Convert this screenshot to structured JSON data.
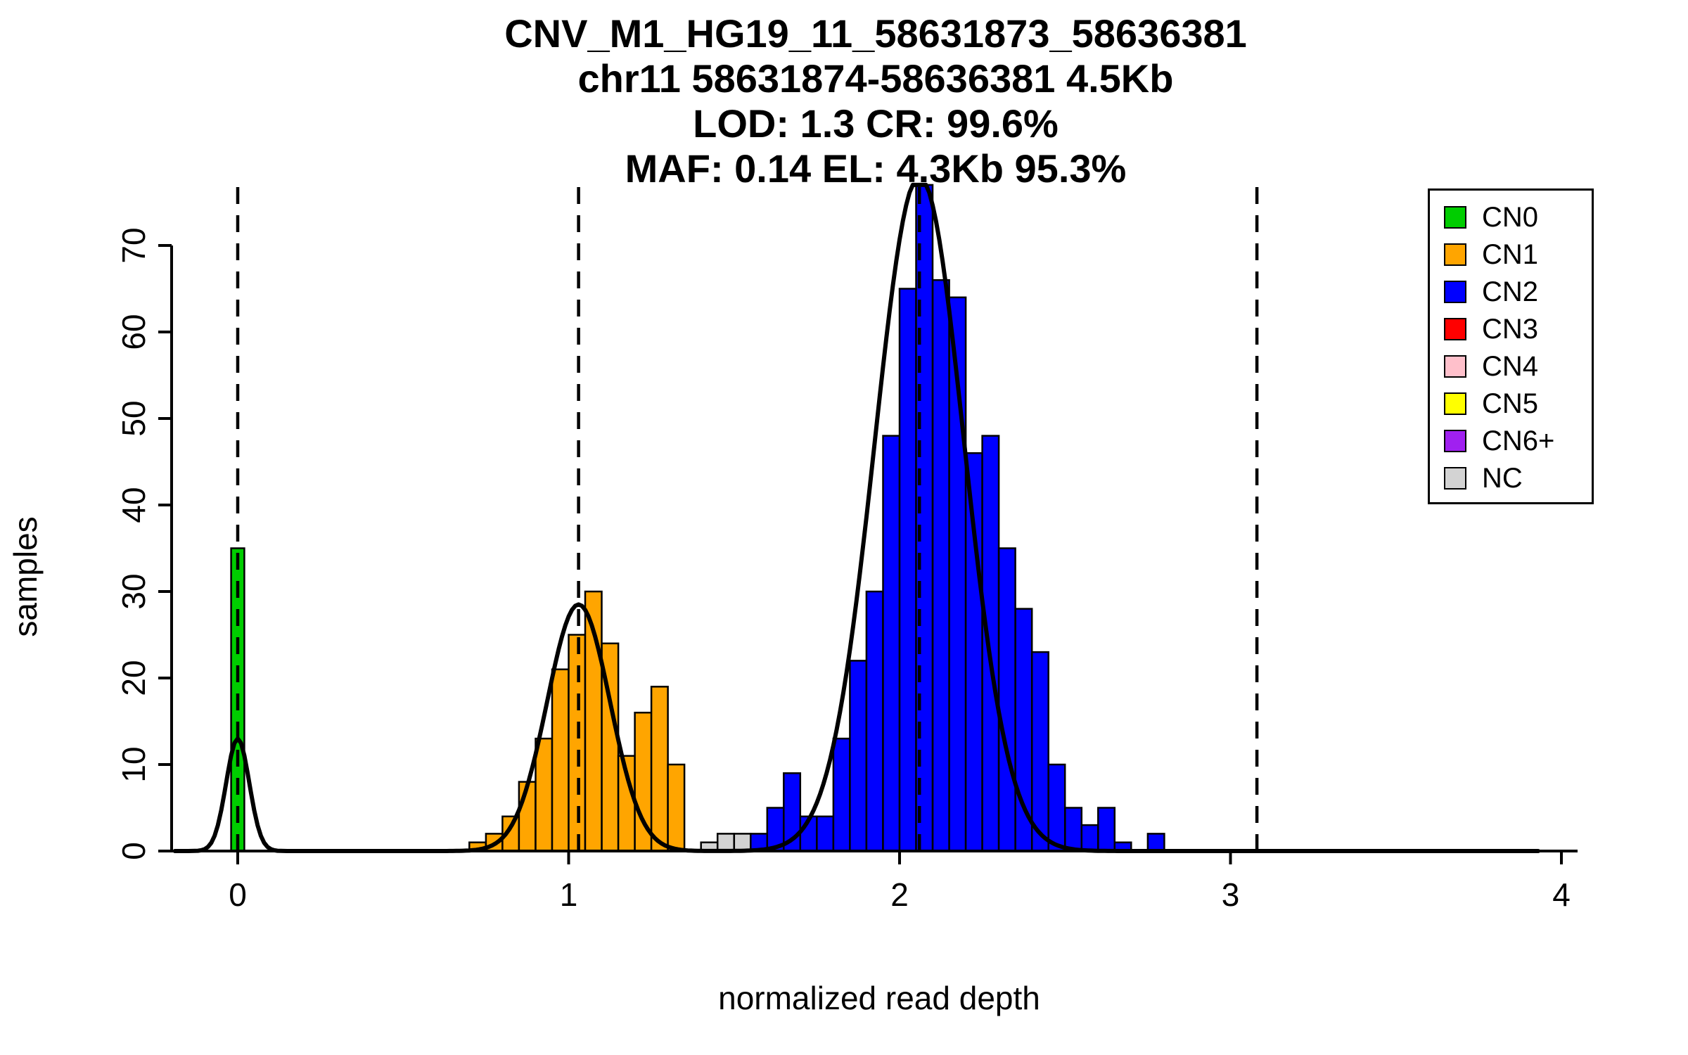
{
  "chart_data": {
    "type": "histogram",
    "title_lines": [
      "CNV_M1_HG19_11_58631873_58636381",
      "chr11 58631874-58636381 4.5Kb",
      "LOD: 1.3 CR: 99.6%",
      "MAF: 0.14 EL: 4.3Kb 95.3%"
    ],
    "xlabel": "normalized read depth",
    "ylabel": "samples",
    "xlim": [
      -0.2,
      4.05
    ],
    "ylim": [
      0,
      77
    ],
    "xticks": [
      0,
      1,
      2,
      3,
      4
    ],
    "yticks": [
      0,
      10,
      20,
      30,
      40,
      50,
      60,
      70
    ],
    "grid": false,
    "legend_position": "top-right",
    "bin_width": 0.05,
    "cluster_means": [
      0,
      1.03,
      2.06,
      3.08
    ],
    "gaussians": [
      {
        "mu": 0.0,
        "sigma": 0.035,
        "amp": 13
      },
      {
        "mu": 1.03,
        "sigma": 0.095,
        "amp": 28.5
      },
      {
        "mu": 2.06,
        "sigma": 0.135,
        "amp": 78
      }
    ],
    "colors": {
      "CN0": "#00CD00",
      "CN1": "#FFA500",
      "CN2": "#0000FF",
      "CN3": "#FF0000",
      "CN4": "#FFC0CB",
      "CN5": "#FFFF00",
      "CN6+": "#A020F0",
      "NC": "#D3D3D3"
    },
    "legend": [
      {
        "label": "CN0",
        "color": "#00CD00"
      },
      {
        "label": "CN1",
        "color": "#FFA500"
      },
      {
        "label": "CN2",
        "color": "#0000FF"
      },
      {
        "label": "CN3",
        "color": "#FF0000"
      },
      {
        "label": "CN4",
        "color": "#FFC0CB"
      },
      {
        "label": "CN5",
        "color": "#FFFF00"
      },
      {
        "label": "CN6+",
        "color": "#A020F0"
      },
      {
        "label": "NC",
        "color": "#D3D3D3"
      }
    ],
    "bars": [
      {
        "x": -0.02,
        "w": 0.04,
        "h": 35,
        "cn": "CN0"
      },
      {
        "x": 0.7,
        "h": 1,
        "cn": "CN1"
      },
      {
        "x": 0.75,
        "h": 2,
        "cn": "CN1"
      },
      {
        "x": 0.8,
        "h": 4,
        "cn": "CN1"
      },
      {
        "x": 0.85,
        "h": 8,
        "cn": "CN1"
      },
      {
        "x": 0.9,
        "h": 13,
        "cn": "CN1"
      },
      {
        "x": 0.95,
        "h": 21,
        "cn": "CN1"
      },
      {
        "x": 1.0,
        "h": 25,
        "cn": "CN1"
      },
      {
        "x": 1.05,
        "h": 30,
        "cn": "CN1"
      },
      {
        "x": 1.1,
        "h": 24,
        "cn": "CN1"
      },
      {
        "x": 1.15,
        "h": 11,
        "cn": "CN1"
      },
      {
        "x": 1.2,
        "h": 16,
        "cn": "CN1"
      },
      {
        "x": 1.25,
        "h": 19,
        "cn": "CN1"
      },
      {
        "x": 1.3,
        "h": 10,
        "cn": "CN1"
      },
      {
        "x": 1.4,
        "h": 1,
        "cn": "NC"
      },
      {
        "x": 1.45,
        "h": 2,
        "cn": "NC"
      },
      {
        "x": 1.5,
        "h": 2,
        "cn": "NC"
      },
      {
        "x": 1.55,
        "h": 2,
        "cn": "CN2"
      },
      {
        "x": 1.6,
        "h": 5,
        "cn": "CN2"
      },
      {
        "x": 1.65,
        "h": 9,
        "cn": "CN2"
      },
      {
        "x": 1.7,
        "h": 4,
        "cn": "CN2"
      },
      {
        "x": 1.75,
        "h": 4,
        "cn": "CN2"
      },
      {
        "x": 1.8,
        "h": 13,
        "cn": "CN2"
      },
      {
        "x": 1.85,
        "h": 22,
        "cn": "CN2"
      },
      {
        "x": 1.9,
        "h": 30,
        "cn": "CN2"
      },
      {
        "x": 1.95,
        "h": 48,
        "cn": "CN2"
      },
      {
        "x": 2.0,
        "h": 65,
        "cn": "CN2"
      },
      {
        "x": 2.05,
        "h": 77,
        "cn": "CN2"
      },
      {
        "x": 2.1,
        "h": 66,
        "cn": "CN2"
      },
      {
        "x": 2.15,
        "h": 64,
        "cn": "CN2"
      },
      {
        "x": 2.2,
        "h": 46,
        "cn": "CN2"
      },
      {
        "x": 2.25,
        "h": 48,
        "cn": "CN2"
      },
      {
        "x": 2.3,
        "h": 35,
        "cn": "CN2"
      },
      {
        "x": 2.35,
        "h": 28,
        "cn": "CN2"
      },
      {
        "x": 2.4,
        "h": 23,
        "cn": "CN2"
      },
      {
        "x": 2.45,
        "h": 10,
        "cn": "CN2"
      },
      {
        "x": 2.5,
        "h": 5,
        "cn": "CN2"
      },
      {
        "x": 2.55,
        "h": 3,
        "cn": "CN2"
      },
      {
        "x": 2.6,
        "h": 5,
        "cn": "CN2"
      },
      {
        "x": 2.65,
        "h": 1,
        "cn": "CN2"
      },
      {
        "x": 2.75,
        "h": 2,
        "cn": "CN2"
      }
    ]
  }
}
